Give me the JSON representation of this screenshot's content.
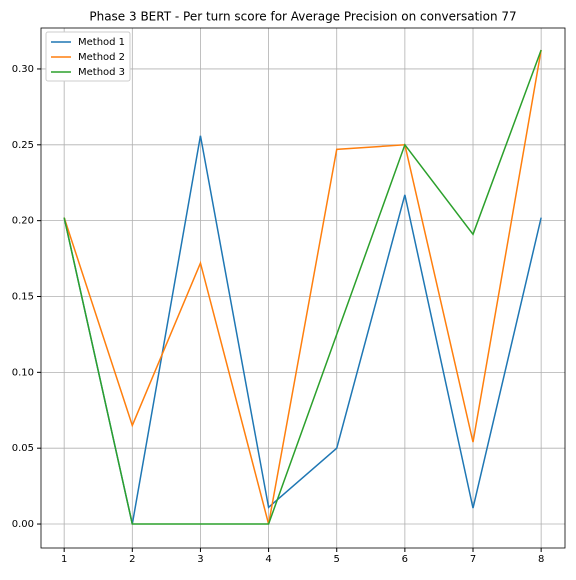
{
  "chart_data": {
    "type": "line",
    "title": "Phase 3 BERT - Per turn score for Average Precision on conversation 77",
    "x": [
      1,
      2,
      3,
      4,
      5,
      6,
      7,
      8
    ],
    "series": [
      {
        "name": "Method 1",
        "color": "#1f77b4",
        "values": [
          0.202,
          0,
          0.256,
          0.011,
          0.05,
          0.217,
          0.0105,
          0.202
        ]
      },
      {
        "name": "Method 2",
        "color": "#ff7f0e",
        "values": [
          0.202,
          0.065,
          0.172,
          0,
          0.247,
          0.25,
          0.054,
          0.3125
        ]
      },
      {
        "name": "Method 3",
        "color": "#2ca02c",
        "values": [
          0.202,
          0,
          0,
          0,
          0.125,
          0.25,
          0.191,
          0.3125
        ]
      }
    ],
    "xlim": [
      0.66,
      8.35
    ],
    "xticks": [
      1,
      2,
      3,
      4,
      5,
      6,
      7,
      8
    ],
    "ylim": [
      -0.0158,
      0.327
    ],
    "yticks": [
      {
        "value": 0,
        "label": "0.00"
      },
      {
        "value": 0.05,
        "label": "0.05"
      },
      {
        "value": 0.1,
        "label": "0.10"
      },
      {
        "value": 0.15,
        "label": "0.15"
      },
      {
        "value": 0.2,
        "label": "0.20"
      },
      {
        "value": 0.25,
        "label": "0.25"
      },
      {
        "value": 0.3,
        "label": "0.30"
      }
    ],
    "grid": true,
    "legend": "upper-left"
  }
}
